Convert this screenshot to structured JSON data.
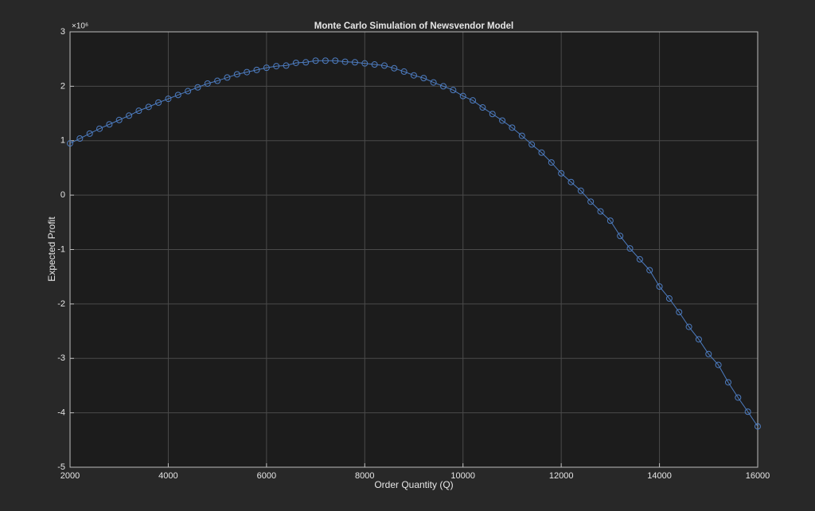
{
  "chart_data": {
    "type": "line",
    "title": "Monte Carlo Simulation of Newsvendor Model",
    "xlabel": "Order Quantity (Q)",
    "ylabel": "Expected Profit",
    "y_exponent_label": "×10⁶",
    "x": [
      2000,
      2200,
      2400,
      2600,
      2800,
      3000,
      3200,
      3400,
      3600,
      3800,
      4000,
      4200,
      4400,
      4600,
      4800,
      5000,
      5200,
      5400,
      5600,
      5800,
      6000,
      6200,
      6400,
      6600,
      6800,
      7000,
      7200,
      7400,
      7600,
      7800,
      8000,
      8200,
      8400,
      8600,
      8800,
      9000,
      9200,
      9400,
      9600,
      9800,
      10000,
      10200,
      10400,
      10600,
      10800,
      11000,
      11200,
      11400,
      11600,
      11800,
      12000,
      12200,
      12400,
      12600,
      12800,
      13000,
      13200,
      13400,
      13600,
      13800,
      14000,
      14200,
      14400,
      14600,
      14800,
      15000,
      15200,
      15400,
      15600,
      15800,
      16000
    ],
    "series": [
      {
        "color": "#4d7cc0",
        "values": [
          0.95,
          1.04,
          1.13,
          1.22,
          1.3,
          1.38,
          1.46,
          1.55,
          1.62,
          1.7,
          1.77,
          1.84,
          1.91,
          1.98,
          2.05,
          2.1,
          2.16,
          2.22,
          2.26,
          2.3,
          2.34,
          2.37,
          2.38,
          2.43,
          2.44,
          2.47,
          2.47,
          2.47,
          2.45,
          2.44,
          2.42,
          2.4,
          2.38,
          2.33,
          2.27,
          2.2,
          2.15,
          2.07,
          2.0,
          1.93,
          1.82,
          1.74,
          1.61,
          1.49,
          1.37,
          1.24,
          1.09,
          0.93,
          0.78,
          0.6,
          0.4,
          0.24,
          0.08,
          -0.12,
          -0.3,
          -0.47,
          -0.75,
          -0.98,
          -1.18,
          -1.38,
          -1.68,
          -1.9,
          -2.15,
          -2.42,
          -2.65,
          -2.92,
          -3.12,
          -3.44,
          -3.72,
          -3.98,
          -4.25
        ]
      }
    ],
    "xlim": [
      2000,
      16000
    ],
    "xticks": [
      2000,
      4000,
      6000,
      8000,
      10000,
      12000,
      14000,
      16000
    ],
    "ylim": [
      -5,
      3
    ],
    "yticks": [
      -5,
      -4,
      -3,
      -2,
      -1,
      0,
      1,
      2,
      3
    ],
    "grid": true
  }
}
